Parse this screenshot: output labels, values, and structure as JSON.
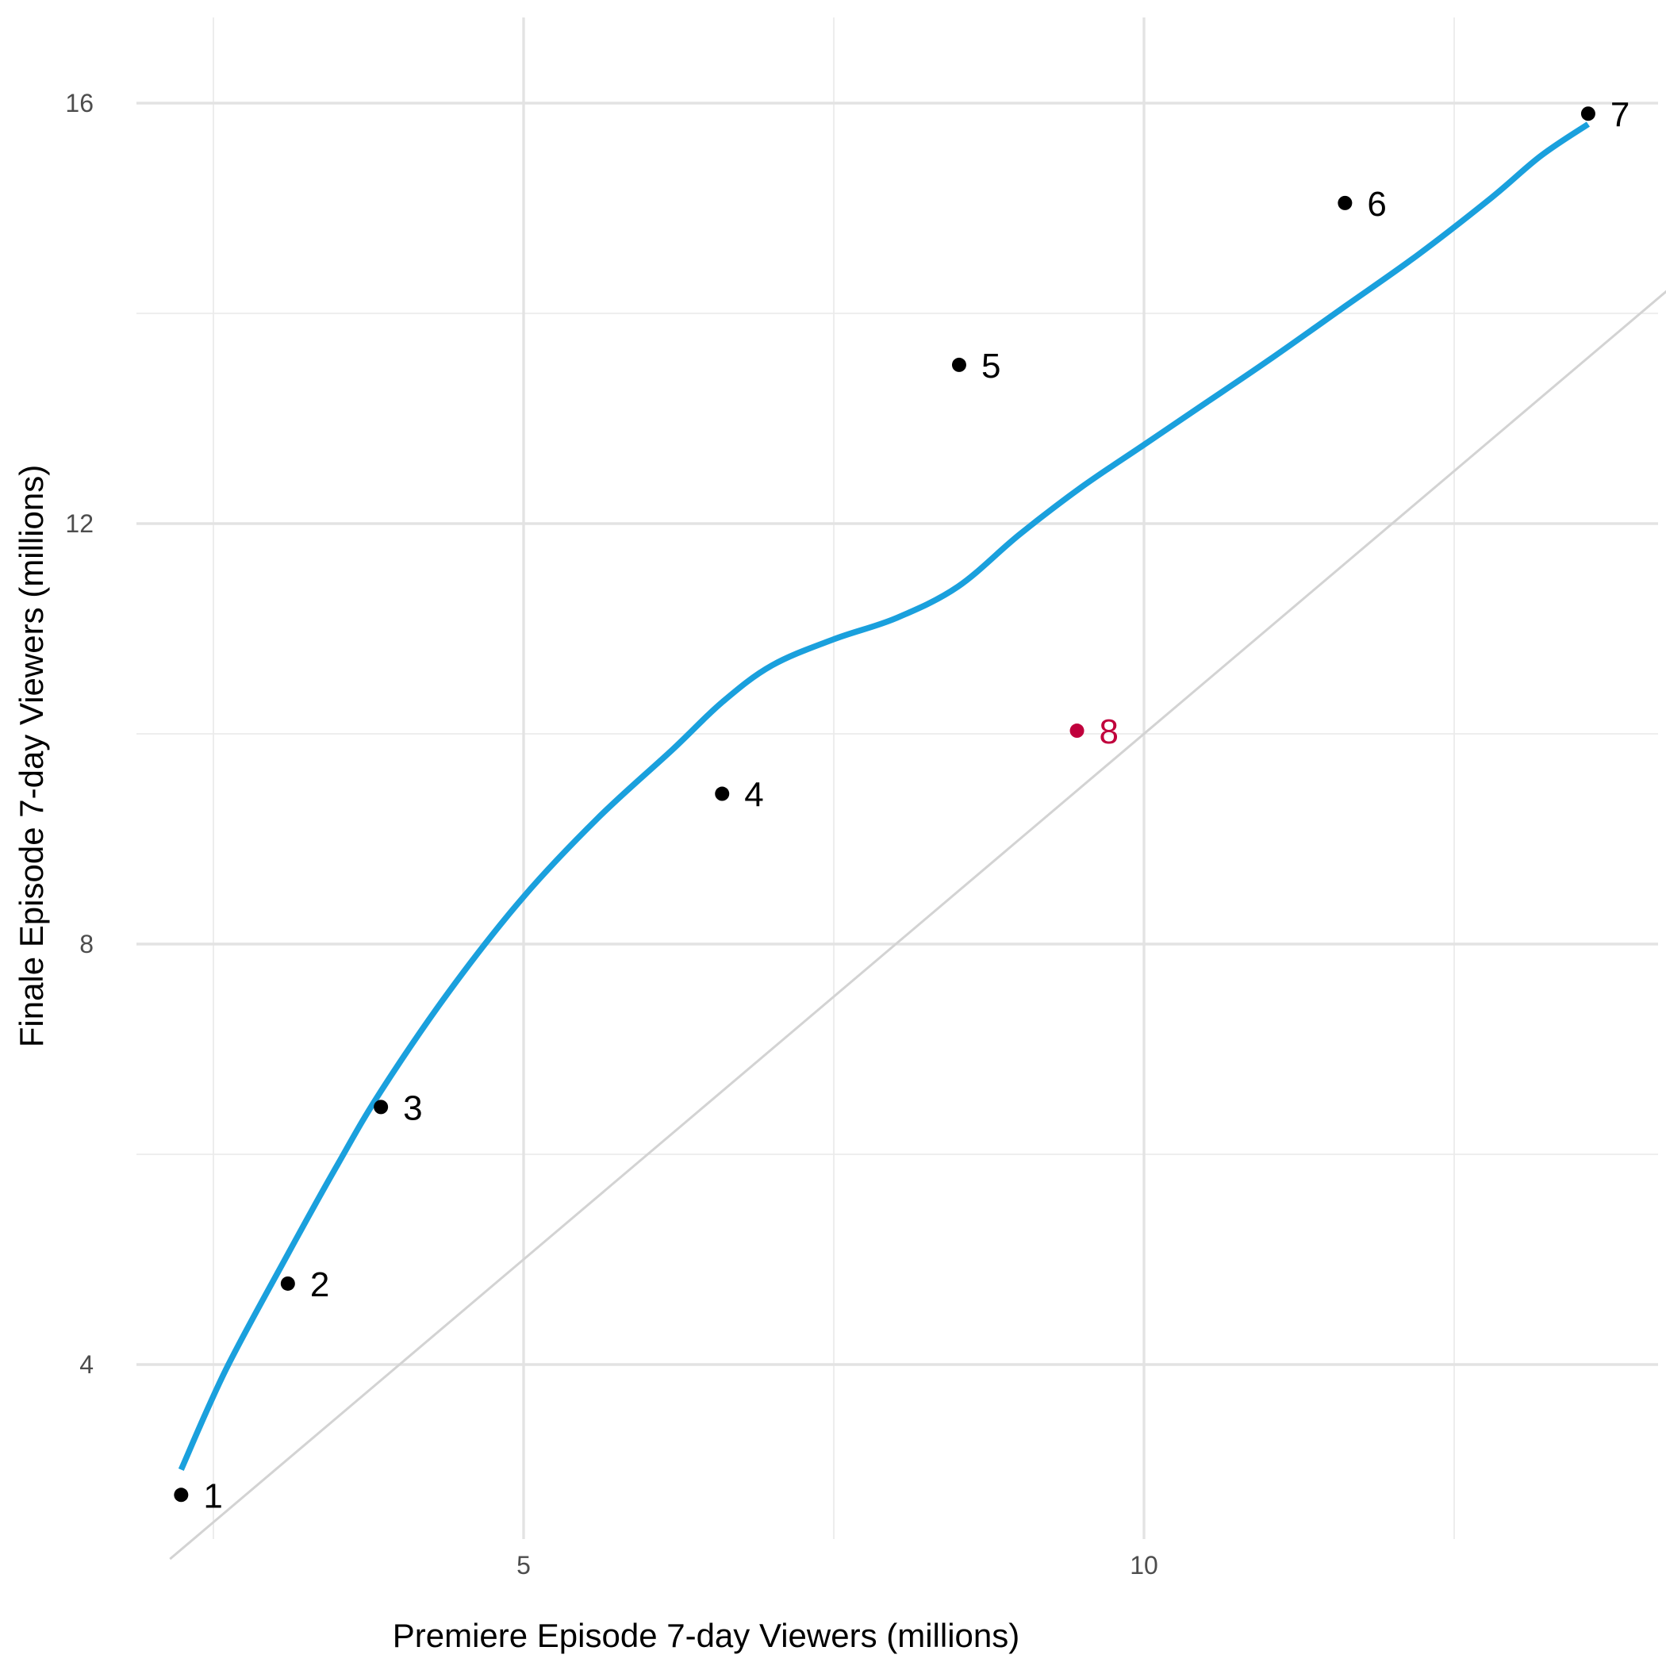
{
  "chart_data": {
    "type": "scatter",
    "title": "",
    "xlabel": "Premiere Episode 7-day Viewers (millions)",
    "ylabel": "Finale Episode 7-day Viewers (millions)",
    "xlim": [
      2.2,
      14.3
    ],
    "ylim": [
      1.5,
      16.8
    ],
    "x_ticks": [
      5,
      10
    ],
    "x_minor": [
      2.5,
      7.5,
      12.5
    ],
    "y_ticks": [
      4,
      8,
      12,
      16
    ],
    "y_minor": [
      6,
      10,
      14
    ],
    "grid": true,
    "legend": "none",
    "points": [
      {
        "label": "1",
        "x": 2.24,
        "y": 2.76,
        "highlight": false
      },
      {
        "label": "2",
        "x": 3.1,
        "y": 4.77,
        "highlight": false
      },
      {
        "label": "3",
        "x": 3.85,
        "y": 6.45,
        "highlight": false
      },
      {
        "label": "4",
        "x": 6.6,
        "y": 9.43,
        "highlight": false
      },
      {
        "label": "5",
        "x": 8.51,
        "y": 13.51,
        "highlight": false
      },
      {
        "label": "6",
        "x": 11.62,
        "y": 15.05,
        "highlight": false
      },
      {
        "label": "7",
        "x": 13.58,
        "y": 15.9,
        "highlight": false
      },
      {
        "label": "8",
        "x": 9.46,
        "y": 10.03,
        "highlight": true
      }
    ],
    "smooth_curve": {
      "x": [
        2.24,
        2.6,
        3.1,
        3.5,
        3.85,
        4.4,
        5.0,
        5.6,
        6.2,
        6.6,
        7.0,
        7.5,
        8.0,
        8.5,
        9.0,
        9.5,
        10.0,
        10.5,
        11.0,
        11.6,
        12.2,
        12.8,
        13.2,
        13.58
      ],
      "y": [
        3.0,
        3.95,
        5.05,
        5.9,
        6.6,
        7.55,
        8.45,
        9.2,
        9.85,
        10.3,
        10.65,
        10.9,
        11.1,
        11.4,
        11.9,
        12.35,
        12.75,
        13.15,
        13.55,
        14.05,
        14.55,
        15.1,
        15.5,
        15.8
      ]
    },
    "reference_line": {
      "slope": 1,
      "intercept": 0
    },
    "colors": {
      "point": "#000000",
      "highlight": "#c0003c",
      "smooth": "#1aa0dd",
      "reference": "#d3d3d3"
    }
  }
}
